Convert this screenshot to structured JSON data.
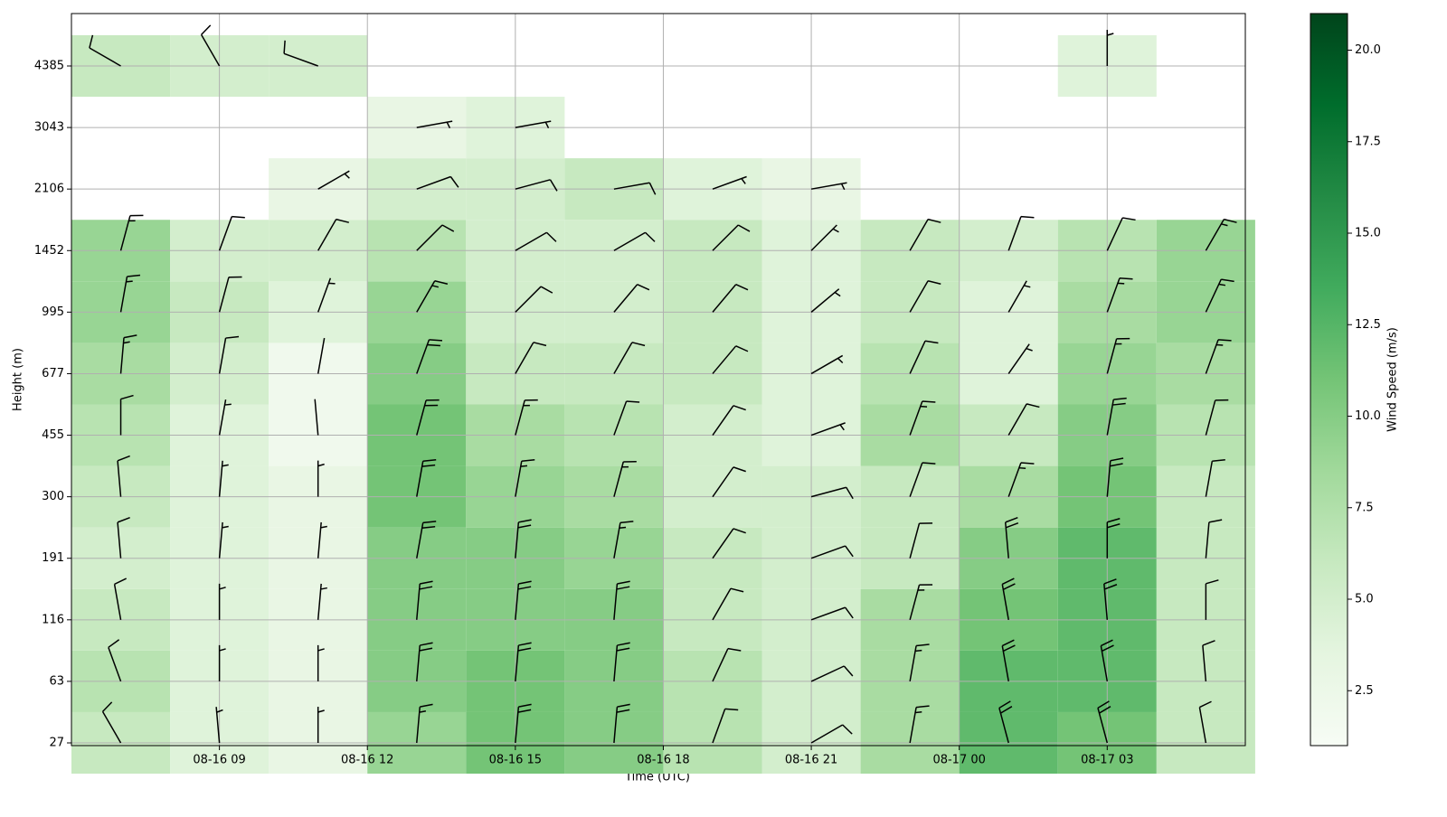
{
  "chart_data": {
    "type": "heatmap-barbs",
    "xlabel": "Time (UTC)",
    "ylabel": "Height (m)",
    "colorbar_label": "Wind Speed (m/s)",
    "x": [
      7,
      9,
      11,
      13,
      15,
      17,
      19,
      21,
      23,
      25,
      27,
      29
    ],
    "xlim": [
      6,
      29.8
    ],
    "xticks": [
      {
        "value": 9,
        "label": "08-16 09"
      },
      {
        "value": 12,
        "label": "08-16 12"
      },
      {
        "value": 15,
        "label": "08-16 15"
      },
      {
        "value": 18,
        "label": "08-16 18"
      },
      {
        "value": 21,
        "label": "08-16 21"
      },
      {
        "value": 24,
        "label": "08-17 00"
      },
      {
        "value": 27,
        "label": "08-17 03"
      }
    ],
    "heights": [
      27,
      63,
      116,
      191,
      300,
      455,
      677,
      995,
      1452,
      2106,
      3043,
      4385
    ],
    "speed": [
      [
        6,
        7,
        6,
        5,
        6,
        7,
        8,
        9,
        9,
        null,
        null,
        6
      ],
      [
        4,
        4,
        4,
        4,
        4,
        4,
        5,
        6,
        5,
        null,
        null,
        5
      ],
      [
        3,
        3,
        3,
        3,
        3,
        2,
        2,
        4,
        5,
        3,
        null,
        5
      ],
      [
        9,
        10,
        10,
        10,
        11,
        11,
        10,
        9,
        7,
        5,
        3,
        null
      ],
      [
        11,
        11,
        10,
        10,
        9,
        8,
        6,
        5,
        5,
        5,
        4,
        null
      ],
      [
        10,
        10,
        10,
        9,
        8,
        7,
        6,
        5,
        5,
        6,
        null,
        null
      ],
      [
        7,
        7,
        6,
        6,
        5,
        5,
        6,
        6,
        6,
        4,
        null,
        null
      ],
      [
        5,
        5,
        5,
        5,
        5,
        4,
        4,
        4,
        4,
        3,
        null,
        null
      ],
      [
        8,
        8,
        8,
        6,
        6,
        8,
        7,
        6,
        6,
        null,
        null,
        null
      ],
      [
        12,
        12,
        11,
        10,
        8,
        6,
        4,
        4,
        5,
        null,
        null,
        null
      ],
      [
        11,
        12,
        12,
        12,
        11,
        10,
        9,
        8,
        7,
        null,
        null,
        4
      ],
      [
        6,
        6,
        6,
        6,
        6,
        7,
        8,
        9,
        9,
        null,
        null,
        null
      ]
    ],
    "direction": [
      [
        330,
        340,
        350,
        355,
        355,
        0,
        5,
        10,
        15,
        null,
        null,
        300
      ],
      [
        355,
        0,
        0,
        5,
        5,
        10,
        10,
        15,
        20,
        null,
        null,
        330
      ],
      [
        0,
        0,
        5,
        5,
        0,
        355,
        10,
        20,
        30,
        60,
        null,
        290
      ],
      [
        5,
        5,
        5,
        10,
        10,
        15,
        20,
        30,
        45,
        70,
        80,
        null
      ],
      [
        5,
        5,
        5,
        5,
        10,
        15,
        30,
        45,
        60,
        75,
        80,
        null
      ],
      [
        5,
        5,
        5,
        10,
        15,
        20,
        30,
        40,
        60,
        80,
        null,
        null
      ],
      [
        20,
        25,
        30,
        35,
        35,
        35,
        40,
        40,
        45,
        70,
        null,
        null
      ],
      [
        60,
        65,
        70,
        70,
        75,
        70,
        60,
        50,
        45,
        80,
        null,
        null
      ],
      [
        10,
        10,
        15,
        15,
        20,
        20,
        25,
        30,
        30,
        null,
        null,
        null
      ],
      [
        345,
        350,
        350,
        355,
        20,
        30,
        35,
        30,
        20,
        null,
        null,
        null
      ],
      [
        345,
        350,
        355,
        0,
        5,
        10,
        15,
        20,
        25,
        null,
        null,
        0
      ],
      [
        350,
        355,
        0,
        5,
        10,
        15,
        20,
        25,
        30,
        null,
        null,
        null
      ]
    ],
    "clim": [
      1,
      21
    ],
    "cticks": [
      {
        "value": 2.5,
        "label": "2.5"
      },
      {
        "value": 5,
        "label": "5.0"
      },
      {
        "value": 7.5,
        "label": "7.5"
      },
      {
        "value": 10,
        "label": "10.0"
      },
      {
        "value": 12.5,
        "label": "12.5"
      },
      {
        "value": 15,
        "label": "15.0"
      },
      {
        "value": 17.5,
        "label": "17.5"
      },
      {
        "value": 20,
        "label": "20.0"
      }
    ],
    "colormap": [
      "#f7fcf5",
      "#e5f5e0",
      "#c7e9c0",
      "#a1d99b",
      "#74c476",
      "#41ab5d",
      "#238b45",
      "#006d2c",
      "#00441b"
    ],
    "grid": true
  }
}
